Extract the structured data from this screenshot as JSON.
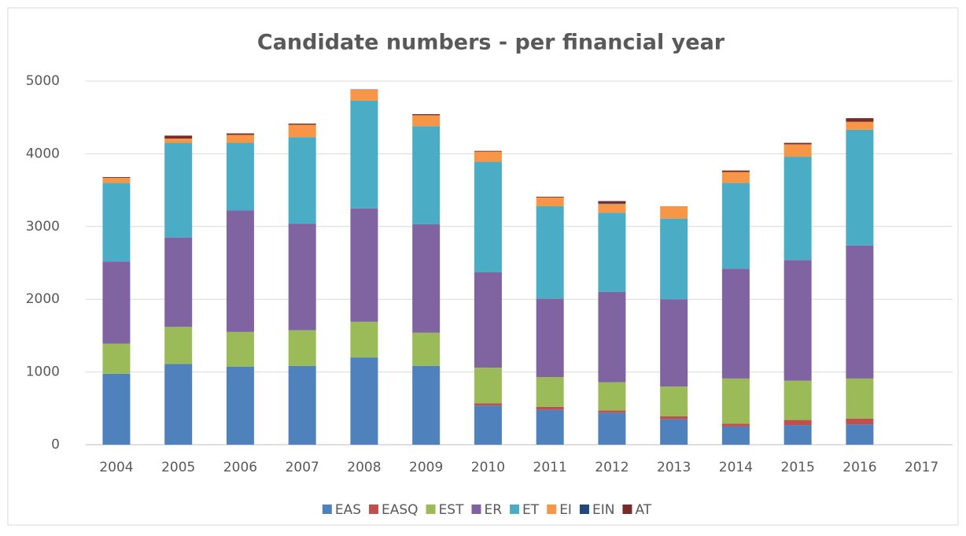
{
  "chart_data": {
    "type": "stacked_bar",
    "title": "Candidate numbers - per financial year",
    "categories": [
      "2004",
      "2005",
      "2006",
      "2007",
      "2008",
      "2009",
      "2010",
      "2011",
      "2012",
      "2013",
      "2014",
      "2015",
      "2016",
      "2017"
    ],
    "series": [
      {
        "name": "EAS",
        "color": "#4f81bd",
        "values": [
          975,
          1110,
          1075,
          1085,
          1200,
          1085,
          540,
          480,
          440,
          350,
          250,
          270,
          280,
          null
        ]
      },
      {
        "name": "EASQ",
        "color": "#c0504d",
        "values": [
          0,
          0,
          0,
          0,
          0,
          0,
          30,
          40,
          30,
          40,
          40,
          70,
          80,
          null
        ]
      },
      {
        "name": "EST",
        "color": "#9bbb59",
        "values": [
          415,
          510,
          475,
          490,
          490,
          455,
          490,
          410,
          390,
          410,
          620,
          540,
          550,
          null
        ]
      },
      {
        "name": "ER",
        "color": "#8064a2",
        "values": [
          1130,
          1230,
          1670,
          1465,
          1560,
          1490,
          1310,
          1080,
          1240,
          1200,
          1510,
          1660,
          1830,
          null
        ]
      },
      {
        "name": "ET",
        "color": "#4bacc6",
        "values": [
          1080,
          1300,
          930,
          1190,
          1480,
          1350,
          1520,
          1270,
          1090,
          1110,
          1180,
          1420,
          1590,
          null
        ]
      },
      {
        "name": "EI",
        "color": "#f79646",
        "values": [
          70,
          60,
          110,
          170,
          150,
          150,
          140,
          120,
          120,
          170,
          150,
          170,
          110,
          null
        ]
      },
      {
        "name": "EIN",
        "color": "#1f497d",
        "values": [
          0,
          0,
          0,
          0,
          0,
          0,
          0,
          0,
          10,
          0,
          0,
          0,
          0,
          null
        ]
      },
      {
        "name": "AT",
        "color": "#772c2a",
        "values": [
          10,
          40,
          20,
          15,
          5,
          15,
          10,
          10,
          30,
          0,
          20,
          20,
          50,
          null
        ]
      }
    ],
    "ylim": [
      0,
      5000
    ],
    "yticks": [
      0,
      1000,
      2000,
      3000,
      4000,
      5000
    ],
    "grid": true,
    "legend": "bottom"
  }
}
